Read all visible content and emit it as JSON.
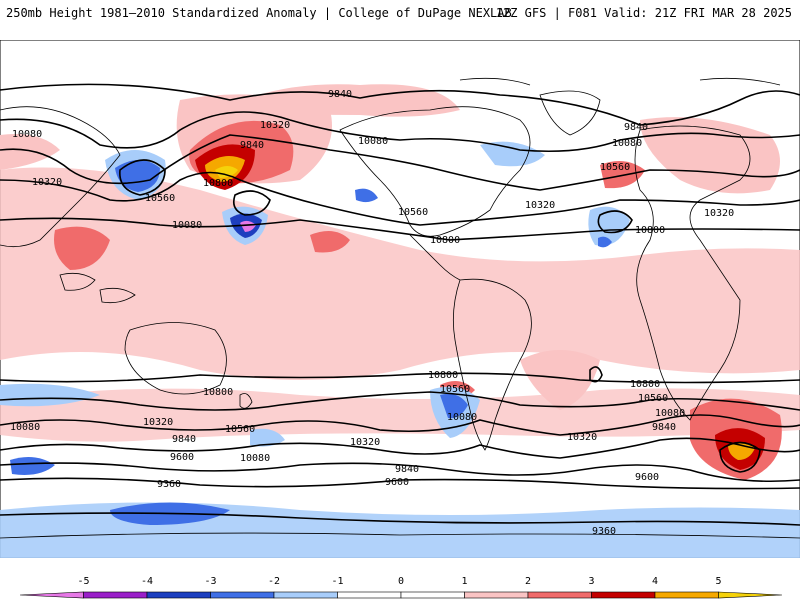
{
  "header": {
    "left_title": "250mb Height 1981–2010 Standardized Anomaly | College of DuPage NEXLAB",
    "right_title": "12Z GFS | F081 Valid: 21Z FRI MAR 28 2025"
  },
  "contour_labels": [
    "9840",
    "10080",
    "10320",
    "10560",
    "10800",
    "10080",
    "10320",
    "9840",
    "10080",
    "10560",
    "10320",
    "10800",
    "10080",
    "10560",
    "10800",
    "9840",
    "10320",
    "10800",
    "10080",
    "10560",
    "10800",
    "10560",
    "10080",
    "10320",
    "9840",
    "9600",
    "9360",
    "10320",
    "10080",
    "9840",
    "9600",
    "10800",
    "10560",
    "10080",
    "10320",
    "9840",
    "9600",
    "9360"
  ],
  "colorbar": {
    "tick_labels": [
      "-5",
      "-4",
      "-3",
      "-2",
      "-1",
      "0",
      "1",
      "2",
      "3",
      "4",
      "5"
    ],
    "colors": [
      "#e678e6",
      "#9a1fc9",
      "#1d3fbf",
      "#3f6fe6",
      "#a8cdfa",
      "#ffffff",
      "#ffffff",
      "#fac4c4",
      "#f06b6b",
      "#c40000",
      "#f5a800",
      "#f5d20a"
    ]
  }
}
